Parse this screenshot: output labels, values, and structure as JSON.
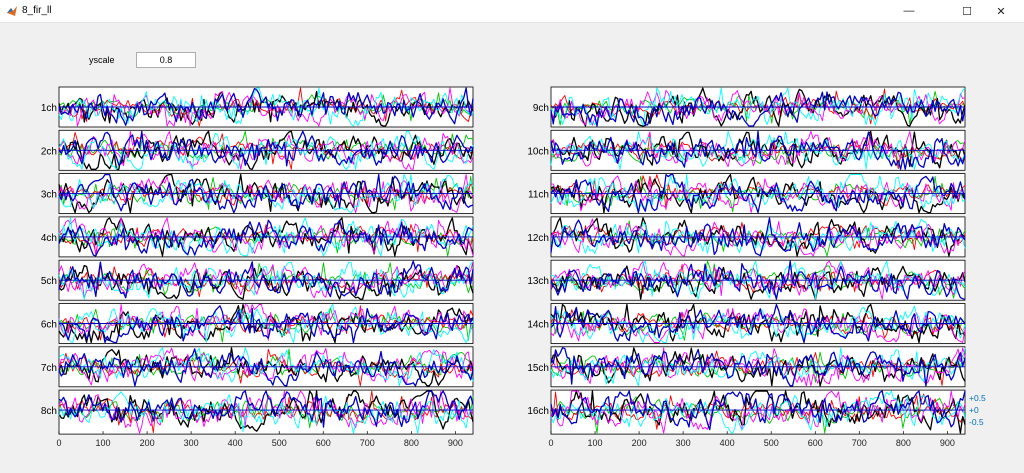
{
  "window": {
    "title": "8_fir_ll",
    "min_icon": "minimize-icon",
    "max_icon": "maximize-icon",
    "close_icon": "close-icon"
  },
  "controls": {
    "yscale_label": "yscale",
    "yscale_value": "0.8"
  },
  "chart_data": [
    {
      "type": "line",
      "channels": [
        "1ch",
        "2ch",
        "3ch",
        "4ch",
        "5ch",
        "6ch",
        "7ch",
        "8ch"
      ],
      "xlim": [
        0,
        940
      ],
      "xticks": [
        "0",
        "100",
        "200",
        "300",
        "400",
        "500",
        "600",
        "700",
        "800",
        "900"
      ],
      "series_colors": [
        "#00c800",
        "#ff0000",
        "#000000",
        "#ff00ff",
        "#00ffff",
        "#0000c8"
      ],
      "grid": false
    },
    {
      "type": "line",
      "channels": [
        "9ch",
        "10ch",
        "11ch",
        "12ch",
        "13ch",
        "14ch",
        "15ch",
        "16ch"
      ],
      "xlim": [
        0,
        940
      ],
      "xticks": [
        "0",
        "100",
        "200",
        "300",
        "400",
        "500",
        "600",
        "700",
        "800",
        "900"
      ],
      "ytick_labels_last": [
        "+0.5",
        "+0",
        "-0.5"
      ],
      "ytick_color": "#0072bd",
      "series_colors": [
        "#00c800",
        "#ff0000",
        "#000000",
        "#ff00ff",
        "#00ffff",
        "#0000c8"
      ],
      "grid": false
    }
  ]
}
